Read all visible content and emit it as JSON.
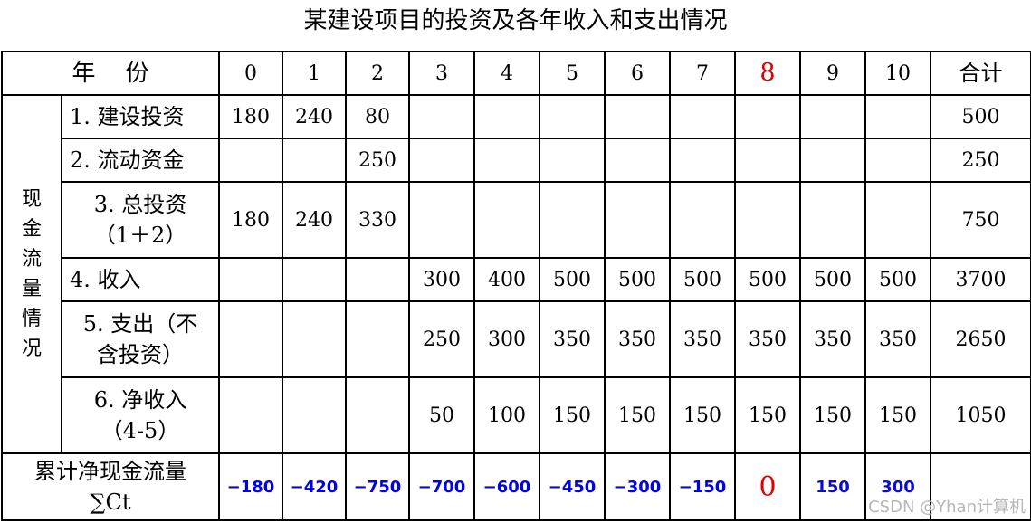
{
  "title": "某建设项目的投资及各年收入和支出情况",
  "header": {
    "year_label": "年    份",
    "years": [
      "0",
      "1",
      "2",
      "3",
      "4",
      "5",
      "6",
      "7",
      "8",
      "9",
      "10"
    ],
    "total_label": "合计"
  },
  "side_label": [
    "现",
    "金",
    "流",
    "量",
    "情",
    "况"
  ],
  "rows": [
    {
      "label": "1. 建设投资",
      "cells": [
        "180",
        "240",
        "80",
        "",
        "",
        "",
        "",
        "",
        "",
        "",
        ""
      ],
      "total": "500"
    },
    {
      "label": "2. 流动资金",
      "cells": [
        "",
        "",
        "250",
        "",
        "",
        "",
        "",
        "",
        "",
        "",
        ""
      ],
      "total": "250"
    },
    {
      "label_line1": "3. 总投资",
      "label_line2": "（1＋2）",
      "cells": [
        "180",
        "240",
        "330",
        "",
        "",
        "",
        "",
        "",
        "",
        "",
        ""
      ],
      "total": "750"
    },
    {
      "label": "4. 收入",
      "cells": [
        "",
        "",
        "",
        "300",
        "400",
        "500",
        "500",
        "500",
        "500",
        "500",
        "500"
      ],
      "total": "3700"
    },
    {
      "label_line1": "5. 支出（不",
      "label_line2": "含投资）",
      "cells": [
        "",
        "",
        "",
        "250",
        "300",
        "350",
        "350",
        "350",
        "350",
        "350",
        "350"
      ],
      "total": "2650"
    },
    {
      "label_line1": "6. 净收入",
      "label_line2": "（4-5）",
      "cells": [
        "",
        "",
        "",
        "50",
        "100",
        "150",
        "150",
        "150",
        "150",
        "150",
        "150"
      ],
      "total": "1050"
    }
  ],
  "cumulative": {
    "label_line1": "累计净现金流量",
    "label_line2": "∑Ct",
    "cells": [
      "−180",
      "−420",
      "−750",
      "−700",
      "−600",
      "−450",
      "−300",
      "−150",
      "0",
      "150",
      "300"
    ],
    "total": ""
  },
  "watermark": "CSDN @Yhan计算机",
  "colors": {
    "highlight": "#e00000",
    "cumulative": "#0000ee",
    "grid": "#000000"
  }
}
